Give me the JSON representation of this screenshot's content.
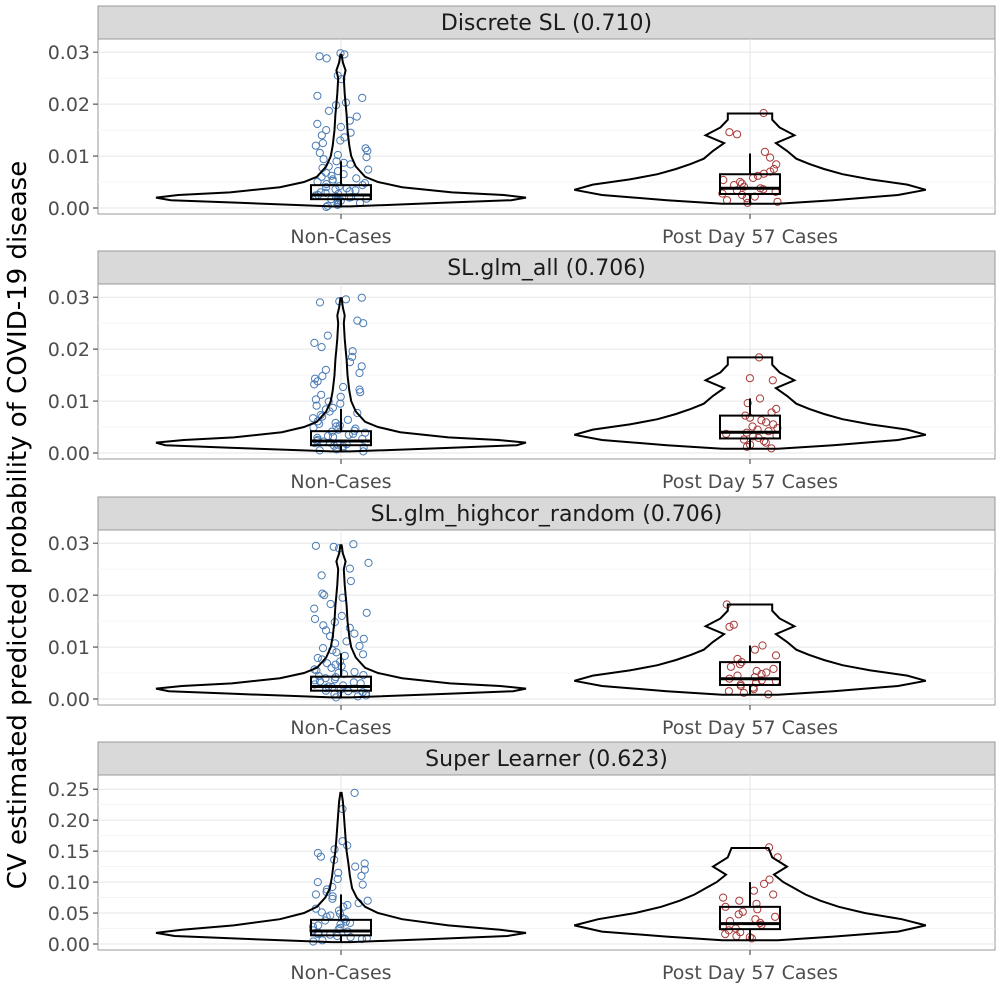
{
  "y_axis_title": "CV estimated predicted probability of COVID-19 disease",
  "colors": {
    "non_cases": "#4a7bb5",
    "cases": "#a83a3a",
    "strip": "#d9d9d9"
  },
  "chart_data": [
    {
      "type": "violin+box+jitter",
      "title": "Discrete SL (0.710)",
      "categories": [
        "Non-Cases",
        "Post Day 57 Cases"
      ],
      "ylim": [
        0,
        0.031
      ],
      "yticks": [
        0.0,
        0.01,
        0.02,
        0.03
      ],
      "ytick_labels": [
        "0.00",
        "0.01",
        "0.02",
        "0.03"
      ],
      "groups": [
        {
          "name": "Non-Cases",
          "box": {
            "q1": 0.0017,
            "median": 0.0025,
            "q3": 0.0044,
            "lower": 0.0001,
            "upper": 0.009
          },
          "violin": {
            "y": [
              0.0003,
              0.001,
              0.0015,
              0.002,
              0.0025,
              0.003,
              0.004,
              0.005,
              0.006,
              0.008,
              0.01,
              0.012,
              0.015,
              0.018,
              0.02,
              0.022,
              0.025,
              0.0265,
              0.028,
              0.0295
            ],
            "w": [
              0.05,
              0.55,
              0.92,
              1.0,
              0.88,
              0.6,
              0.33,
              0.2,
              0.13,
              0.08,
              0.055,
              0.045,
              0.035,
              0.03,
              0.025,
              0.02,
              0.015,
              0.025,
              0.01,
              0.003
            ]
          },
          "points": [
            0.0298,
            0.0296,
            0.0292,
            0.0288,
            0.0255,
            0.0248,
            0.0216,
            0.0212,
            0.0203,
            0.0198,
            0.0187,
            0.0176,
            0.0168,
            0.0162,
            0.0156,
            0.015,
            0.0145,
            0.014,
            0.0136,
            0.013,
            0.0125,
            0.012,
            0.0115,
            0.011,
            0.0106,
            0.0102,
            0.0098,
            0.0094,
            0.009,
            0.0087,
            0.0084,
            0.008,
            0.0077,
            0.0074,
            0.0071,
            0.0068,
            0.0065,
            0.0062,
            0.006,
            0.0057,
            0.0055,
            0.0052,
            0.005,
            0.0048,
            0.0046,
            0.0044,
            0.0042,
            0.004,
            0.0038,
            0.0036,
            0.0034,
            0.0032,
            0.003,
            0.0029,
            0.0027,
            0.0025,
            0.0024,
            0.0022,
            0.0021,
            0.002,
            0.0018,
            0.0017,
            0.0015,
            0.0014,
            0.0012,
            0.001,
            0.0008,
            0.0006,
            0.0004,
            0.0002
          ]
        },
        {
          "name": "Post Day 57 Cases",
          "box": {
            "q1": 0.0027,
            "median": 0.0038,
            "q3": 0.0065,
            "lower": 0.0008,
            "upper": 0.0105
          },
          "violin": {
            "y": [
              0.0008,
              0.0015,
              0.0025,
              0.0035,
              0.0045,
              0.0055,
              0.0065,
              0.0075,
              0.0085,
              0.0095,
              0.011,
              0.0125,
              0.014,
              0.0155,
              0.017,
              0.0182
            ],
            "w": [
              0.15,
              0.45,
              0.8,
              0.95,
              0.85,
              0.65,
              0.5,
              0.4,
              0.32,
              0.25,
              0.2,
              0.14,
              0.24,
              0.16,
              0.12,
              0.12
            ]
          },
          "points": [
            0.0183,
            0.0146,
            0.0142,
            0.0108,
            0.0097,
            0.0084,
            0.0075,
            0.007,
            0.0066,
            0.0062,
            0.0058,
            0.0054,
            0.005,
            0.0047,
            0.0044,
            0.0041,
            0.0038,
            0.0036,
            0.0034,
            0.0031,
            0.0028,
            0.0025,
            0.0022,
            0.0019,
            0.0015,
            0.0012,
            0.001
          ]
        }
      ]
    },
    {
      "type": "violin+box+jitter",
      "title": "SL.glm_all (0.706)",
      "categories": [
        "Non-Cases",
        "Post Day 57 Cases"
      ],
      "ylim": [
        0,
        0.031
      ],
      "yticks": [
        0.0,
        0.01,
        0.02,
        0.03
      ],
      "ytick_labels": [
        "0.00",
        "0.01",
        "0.02",
        "0.03"
      ],
      "groups": [
        {
          "name": "Non-Cases",
          "box": {
            "q1": 0.0015,
            "median": 0.0023,
            "q3": 0.0042,
            "lower": 0.0001,
            "upper": 0.0085
          },
          "violin": {
            "y": [
              0.0003,
              0.001,
              0.0015,
              0.002,
              0.0025,
              0.003,
              0.004,
              0.005,
              0.006,
              0.008,
              0.01,
              0.012,
              0.015,
              0.018,
              0.02,
              0.022,
              0.025,
              0.0265,
              0.028,
              0.0298
            ],
            "w": [
              0.05,
              0.6,
              0.95,
              1.0,
              0.85,
              0.58,
              0.32,
              0.2,
              0.13,
              0.08,
              0.055,
              0.045,
              0.035,
              0.03,
              0.025,
              0.02,
              0.015,
              0.02,
              0.01,
              0.003
            ]
          },
          "points": [
            0.0299,
            0.0296,
            0.0292,
            0.029,
            0.0255,
            0.025,
            0.0226,
            0.0212,
            0.0204,
            0.0196,
            0.0185,
            0.0175,
            0.0167,
            0.016,
            0.0154,
            0.0148,
            0.0143,
            0.0138,
            0.0132,
            0.0127,
            0.0122,
            0.0117,
            0.0112,
            0.0108,
            0.0103,
            0.0099,
            0.0095,
            0.0091,
            0.0087,
            0.0084,
            0.008,
            0.0077,
            0.0073,
            0.007,
            0.0067,
            0.0064,
            0.0061,
            0.0058,
            0.0056,
            0.0053,
            0.0051,
            0.0049,
            0.0047,
            0.0045,
            0.0043,
            0.0041,
            0.0039,
            0.0037,
            0.0035,
            0.0033,
            0.0031,
            0.0029,
            0.0027,
            0.0025,
            0.0023,
            0.0022,
            0.002,
            0.0019,
            0.0017,
            0.0016,
            0.0014,
            0.0013,
            0.0011,
            0.0009,
            0.0007,
            0.0005,
            0.0003
          ]
        },
        {
          "name": "Post Day 57 Cases",
          "box": {
            "q1": 0.0028,
            "median": 0.004,
            "q3": 0.0072,
            "lower": 0.0008,
            "upper": 0.0105
          },
          "violin": {
            "y": [
              0.0008,
              0.0015,
              0.0025,
              0.0035,
              0.0045,
              0.0055,
              0.0065,
              0.0075,
              0.0085,
              0.0095,
              0.011,
              0.0125,
              0.014,
              0.0155,
              0.017,
              0.0184
            ],
            "w": [
              0.15,
              0.45,
              0.8,
              0.95,
              0.85,
              0.65,
              0.5,
              0.4,
              0.32,
              0.25,
              0.2,
              0.14,
              0.24,
              0.16,
              0.12,
              0.12
            ]
          },
          "points": [
            0.0184,
            0.0144,
            0.014,
            0.0105,
            0.0096,
            0.0085,
            0.0078,
            0.0072,
            0.0068,
            0.0063,
            0.0059,
            0.0055,
            0.0051,
            0.0048,
            0.0045,
            0.0042,
            0.0039,
            0.0037,
            0.0034,
            0.0032,
            0.0029,
            0.0026,
            0.0023,
            0.002,
            0.0016,
            0.0012,
            0.0009
          ]
        }
      ]
    },
    {
      "type": "violin+box+jitter",
      "title": "SL.glm_highcor_random (0.706)",
      "categories": [
        "Non-Cases",
        "Post Day 57 Cases"
      ],
      "ylim": [
        0,
        0.031
      ],
      "yticks": [
        0.0,
        0.01,
        0.02,
        0.03
      ],
      "ytick_labels": [
        "0.00",
        "0.01",
        "0.02",
        "0.03"
      ],
      "groups": [
        {
          "name": "Non-Cases",
          "box": {
            "q1": 0.0016,
            "median": 0.0024,
            "q3": 0.0043,
            "lower": 0.0001,
            "upper": 0.0088
          },
          "violin": {
            "y": [
              0.0003,
              0.001,
              0.0015,
              0.002,
              0.0025,
              0.003,
              0.004,
              0.005,
              0.006,
              0.008,
              0.01,
              0.012,
              0.015,
              0.018,
              0.02,
              0.022,
              0.025,
              0.0265,
              0.028,
              0.0296
            ],
            "w": [
              0.05,
              0.58,
              0.93,
              1.0,
              0.86,
              0.59,
              0.33,
              0.2,
              0.13,
              0.08,
              0.055,
              0.045,
              0.035,
              0.03,
              0.025,
              0.02,
              0.015,
              0.025,
              0.01,
              0.003
            ]
          },
          "points": [
            0.0298,
            0.0295,
            0.0293,
            0.029,
            0.0262,
            0.0251,
            0.0238,
            0.0227,
            0.0203,
            0.02,
            0.0195,
            0.0183,
            0.0174,
            0.0166,
            0.016,
            0.0154,
            0.0148,
            0.0142,
            0.0137,
            0.0132,
            0.0126,
            0.0121,
            0.0116,
            0.0111,
            0.0107,
            0.0102,
            0.0098,
            0.0094,
            0.009,
            0.0086,
            0.0083,
            0.0079,
            0.0076,
            0.0072,
            0.0069,
            0.0066,
            0.0063,
            0.006,
            0.0057,
            0.0055,
            0.0052,
            0.005,
            0.0048,
            0.0046,
            0.0044,
            0.0042,
            0.004,
            0.0038,
            0.0036,
            0.0034,
            0.0032,
            0.003,
            0.0028,
            0.0026,
            0.0024,
            0.0023,
            0.0021,
            0.002,
            0.0018,
            0.0016,
            0.0015,
            0.0013,
            0.0011,
            0.0009,
            0.0007,
            0.0005,
            0.0003
          ]
        },
        {
          "name": "Post Day 57 Cases",
          "box": {
            "q1": 0.0027,
            "median": 0.0039,
            "q3": 0.0071,
            "lower": 0.0008,
            "upper": 0.0103
          },
          "violin": {
            "y": [
              0.0008,
              0.0015,
              0.0025,
              0.0035,
              0.0045,
              0.0055,
              0.0065,
              0.0075,
              0.0085,
              0.0095,
              0.011,
              0.0125,
              0.014,
              0.0155,
              0.017,
              0.0182
            ],
            "w": [
              0.15,
              0.45,
              0.8,
              0.95,
              0.85,
              0.65,
              0.5,
              0.4,
              0.32,
              0.25,
              0.2,
              0.14,
              0.24,
              0.16,
              0.12,
              0.12
            ]
          },
          "points": [
            0.0182,
            0.0143,
            0.0139,
            0.0103,
            0.0095,
            0.0084,
            0.0077,
            0.0071,
            0.0067,
            0.0062,
            0.0058,
            0.0054,
            0.0051,
            0.0048,
            0.0045,
            0.0042,
            0.0039,
            0.0036,
            0.0034,
            0.0031,
            0.0028,
            0.0025,
            0.0022,
            0.0019,
            0.0015,
            0.0012,
            0.0009
          ]
        }
      ]
    },
    {
      "type": "violin+box+jitter",
      "title": "Super Learner (0.623)",
      "categories": [
        "Non-Cases",
        "Post Day 57 Cases"
      ],
      "ylim": [
        0,
        0.26
      ],
      "yticks": [
        0.0,
        0.05,
        0.1,
        0.15,
        0.2,
        0.25
      ],
      "ytick_labels": [
        "0.00",
        "0.05",
        "0.10",
        "0.15",
        "0.20",
        "0.25"
      ],
      "groups": [
        {
          "name": "Non-Cases",
          "box": {
            "q1": 0.014,
            "median": 0.021,
            "q3": 0.039,
            "lower": 0.002,
            "upper": 0.08
          },
          "violin": {
            "y": [
              0.003,
              0.008,
              0.013,
              0.018,
              0.023,
              0.03,
              0.04,
              0.05,
              0.06,
              0.075,
              0.09,
              0.11,
              0.13,
              0.15,
              0.17,
              0.19,
              0.21,
              0.23,
              0.244
            ],
            "w": [
              0.05,
              0.5,
              0.9,
              1.0,
              0.86,
              0.58,
              0.33,
              0.2,
              0.13,
              0.085,
              0.06,
              0.048,
              0.04,
              0.03,
              0.025,
              0.02,
              0.015,
              0.01,
              0.003
            ]
          },
          "points": [
            0.244,
            0.218,
            0.166,
            0.159,
            0.153,
            0.147,
            0.141,
            0.136,
            0.13,
            0.125,
            0.12,
            0.115,
            0.11,
            0.105,
            0.1,
            0.096,
            0.092,
            0.088,
            0.084,
            0.08,
            0.077,
            0.073,
            0.07,
            0.066,
            0.063,
            0.06,
            0.057,
            0.054,
            0.051,
            0.049,
            0.046,
            0.044,
            0.042,
            0.04,
            0.038,
            0.036,
            0.034,
            0.032,
            0.03,
            0.028,
            0.026,
            0.024,
            0.022,
            0.02,
            0.018,
            0.016,
            0.015,
            0.013,
            0.011,
            0.009,
            0.008,
            0.006,
            0.004
          ]
        },
        {
          "name": "Post Day 57 Cases",
          "box": {
            "q1": 0.024,
            "median": 0.033,
            "q3": 0.06,
            "lower": 0.006,
            "upper": 0.1
          },
          "violin": {
            "y": [
              0.006,
              0.012,
              0.02,
              0.03,
              0.04,
              0.05,
              0.06,
              0.07,
              0.08,
              0.09,
              0.1,
              0.112,
              0.125,
              0.14,
              0.155
            ],
            "w": [
              0.15,
              0.45,
              0.8,
              0.95,
              0.82,
              0.62,
              0.48,
              0.38,
              0.3,
              0.24,
              0.18,
              0.13,
              0.2,
              0.12,
              0.1
            ]
          },
          "points": [
            0.156,
            0.14,
            0.104,
            0.097,
            0.086,
            0.08,
            0.075,
            0.07,
            0.065,
            0.06,
            0.056,
            0.052,
            0.048,
            0.044,
            0.04,
            0.037,
            0.034,
            0.031,
            0.028,
            0.025,
            0.022,
            0.019,
            0.016,
            0.013,
            0.011,
            0.009
          ]
        }
      ]
    }
  ]
}
